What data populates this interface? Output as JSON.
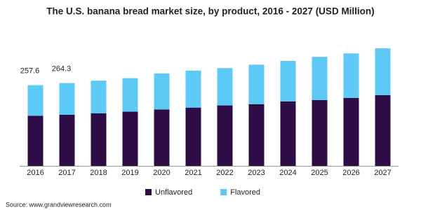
{
  "chart_data": {
    "type": "stacked_bar",
    "title": "The U.S. banana bread market size, by product, 2016 - 2027 (USD Million)",
    "categories": [
      "2016",
      "2017",
      "2018",
      "2019",
      "2020",
      "2021",
      "2022",
      "2023",
      "2024",
      "2025",
      "2026",
      "2027"
    ],
    "series": [
      {
        "name": "Unflavored",
        "color": "#2e0c45",
        "values": [
          160,
          163,
          168,
          173,
          180,
          186,
          193,
          197,
          206,
          210,
          217,
          226
        ]
      },
      {
        "name": "Flavored",
        "color": "#5ccaf5",
        "values": [
          97.6,
          101.3,
          104,
          107,
          115,
          118,
          119,
          126,
          129,
          138,
          142,
          149
        ]
      }
    ],
    "total_labels": [
      257.6,
      264.3
    ],
    "ylim": [
      0,
      440
    ],
    "source": "Source: www.grandviewresearch.com"
  }
}
